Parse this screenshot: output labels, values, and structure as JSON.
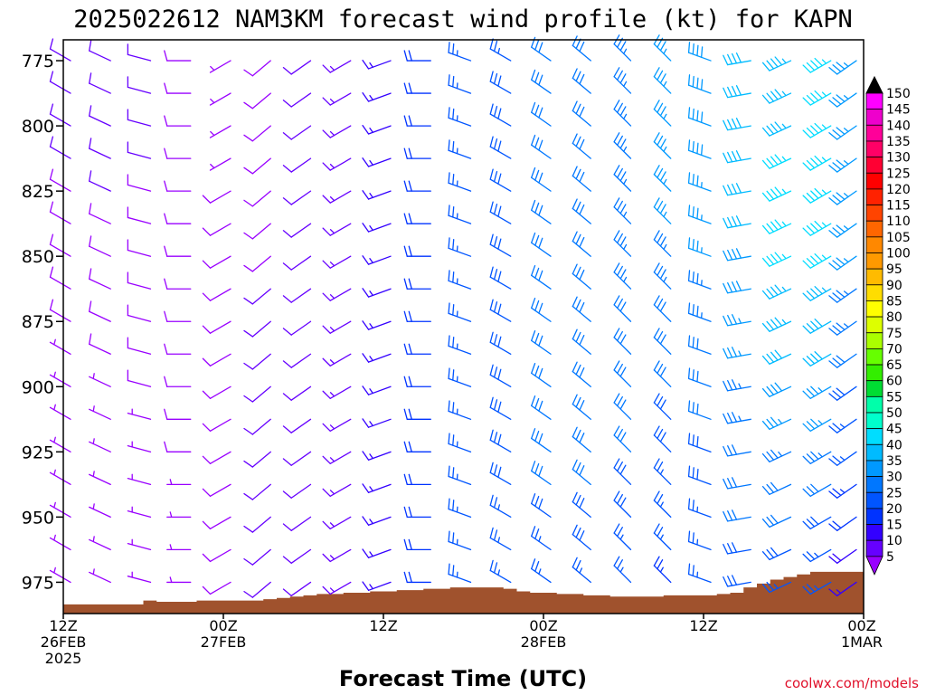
{
  "chart_data": {
    "type": "wind-barb profile",
    "title": "2025022612 NAM3KM forecast wind profile (kt) for KAPN",
    "xlabel": "Forecast Time (UTC)",
    "ylabel": "",
    "credit": "coolwx.com/models",
    "y_axis": {
      "scale": "pressure (hPa), decreasing upward",
      "range": [
        987,
        767
      ],
      "ticks": [
        775,
        800,
        825,
        850,
        875,
        900,
        925,
        950,
        975
      ]
    },
    "x_axis": {
      "range_hours": [
        0,
        60
      ],
      "ticks": [
        {
          "hour": 0,
          "lines": [
            "12Z",
            "26FEB",
            "2025"
          ]
        },
        {
          "hour": 12,
          "lines": [
            "00Z",
            "27FEB"
          ]
        },
        {
          "hour": 24,
          "lines": [
            "12Z"
          ]
        },
        {
          "hour": 36,
          "lines": [
            "00Z",
            "28FEB"
          ]
        },
        {
          "hour": 48,
          "lines": [
            "12Z"
          ]
        },
        {
          "hour": 60,
          "lines": [
            "00Z",
            "1MAR"
          ]
        }
      ]
    },
    "colorbar": {
      "unit": "kt",
      "labels": [
        150,
        145,
        140,
        135,
        130,
        125,
        120,
        115,
        110,
        105,
        100,
        95,
        90,
        85,
        80,
        75,
        70,
        65,
        60,
        55,
        50,
        45,
        40,
        35,
        30,
        25,
        20,
        15,
        10,
        5
      ],
      "colors": [
        "#ff00ff",
        "#ee00cc",
        "#ff0099",
        "#ff0066",
        "#ff0033",
        "#ff0000",
        "#ff2200",
        "#ff4400",
        "#ff6600",
        "#ff8800",
        "#ff9900",
        "#ffbb00",
        "#ffdd00",
        "#ffff00",
        "#ddff00",
        "#aaff00",
        "#66ff00",
        "#33ee00",
        "#00dd33",
        "#00ffaa",
        "#00ffcc",
        "#00ddff",
        "#00bbff",
        "#0099ff",
        "#0077ff",
        "#0055ff",
        "#0033ff",
        "#3300ff",
        "#6600ff",
        "#9900ff"
      ]
    },
    "surface_pressure": {
      "hours": [
        0,
        1,
        2,
        3,
        4,
        5,
        6,
        7,
        8,
        9,
        10,
        11,
        12,
        13,
        14,
        15,
        16,
        17,
        18,
        19,
        20,
        21,
        22,
        23,
        24,
        25,
        26,
        27,
        28,
        29,
        30,
        31,
        32,
        33,
        34,
        35,
        36,
        37,
        38,
        39,
        40,
        41,
        42,
        43,
        44,
        45,
        46,
        47,
        48,
        49,
        50,
        51,
        52,
        53,
        54,
        55,
        56,
        57,
        58,
        59,
        60
      ],
      "pressure": [
        983.5,
        983.5,
        983.5,
        983.5,
        983.5,
        983.5,
        982,
        982.5,
        982.5,
        982.5,
        982,
        982,
        982,
        982,
        982,
        981.5,
        981,
        980.5,
        980,
        979.5,
        979.5,
        979,
        979,
        978.5,
        978.5,
        978,
        978,
        977.5,
        977.5,
        977,
        977,
        977,
        977,
        977.5,
        978.5,
        979,
        979,
        979.5,
        979.5,
        980,
        980,
        980.5,
        980.5,
        980.5,
        980.5,
        980,
        980,
        980,
        980,
        979.5,
        979,
        977,
        975.5,
        974,
        973,
        972,
        971,
        971,
        971,
        971,
        971
      ]
    },
    "levels_hPa": [
      775,
      787.5,
      800,
      812.5,
      825,
      837.5,
      850,
      862.5,
      875,
      887.5,
      900,
      912.5,
      925,
      937.5,
      950,
      962.5,
      975
    ],
    "wind_columns": [
      {
        "hour": 0,
        "dir": 300,
        "speed": [
          12,
          11,
          10,
          10,
          9,
          9,
          8,
          8,
          8,
          7,
          7,
          7,
          6,
          6,
          6,
          6,
          5
        ]
      },
      {
        "hour": 3,
        "dir": 295,
        "speed": [
          12,
          12,
          11,
          10,
          10,
          9,
          9,
          9,
          8,
          8,
          7,
          7,
          7,
          6,
          6,
          6,
          5
        ]
      },
      {
        "hour": 6,
        "dir": 285,
        "speed": [
          11,
          10,
          10,
          10,
          9,
          9,
          9,
          8,
          8,
          8,
          8,
          7,
          7,
          7,
          7,
          6,
          6
        ]
      },
      {
        "hour": 9,
        "dir": 270,
        "speed": [
          8,
          8,
          8,
          8,
          8,
          8,
          8,
          8,
          8,
          8,
          8,
          8,
          8,
          7,
          7,
          7,
          7
        ]
      },
      {
        "hour": 12,
        "dir": 240,
        "speed": [
          6,
          6,
          7,
          7,
          8,
          8,
          8,
          8,
          8,
          8,
          9,
          9,
          9,
          9,
          9,
          9,
          8
        ]
      },
      {
        "hour": 15,
        "dir": 230,
        "speed": [
          8,
          8,
          9,
          9,
          9,
          9,
          9,
          10,
          10,
          10,
          10,
          10,
          10,
          10,
          10,
          10,
          10
        ]
      },
      {
        "hour": 18,
        "dir": 235,
        "speed": [
          10,
          10,
          10,
          10,
          11,
          11,
          11,
          11,
          11,
          11,
          11,
          11,
          11,
          11,
          12,
          12,
          12
        ]
      },
      {
        "hour": 21,
        "dir": 240,
        "speed": [
          14,
          14,
          14,
          14,
          14,
          14,
          13,
          13,
          13,
          13,
          13,
          13,
          13,
          13,
          13,
          13,
          13
        ]
      },
      {
        "hour": 24,
        "dir": 250,
        "speed": [
          16,
          16,
          16,
          16,
          16,
          16,
          16,
          16,
          16,
          16,
          16,
          16,
          16,
          16,
          16,
          16,
          16
        ]
      },
      {
        "hour": 27,
        "dir": 270,
        "speed": [
          20,
          20,
          20,
          20,
          20,
          20,
          20,
          20,
          20,
          20,
          20,
          20,
          20,
          20,
          20,
          20,
          20
        ]
      },
      {
        "hour": 30,
        "dir": 290,
        "speed": [
          25,
          25,
          26,
          26,
          26,
          26,
          26,
          26,
          26,
          26,
          25,
          25,
          25,
          25,
          25,
          25,
          25
        ]
      },
      {
        "hour": 33,
        "dir": 300,
        "speed": [
          27,
          28,
          28,
          28,
          28,
          28,
          28,
          28,
          28,
          28,
          28,
          28,
          28,
          28,
          27,
          26,
          25
        ]
      },
      {
        "hour": 36,
        "dir": 305,
        "speed": [
          30,
          30,
          30,
          30,
          30,
          30,
          30,
          30,
          30,
          30,
          30,
          30,
          30,
          30,
          28,
          27,
          26
        ]
      },
      {
        "hour": 39,
        "dir": 310,
        "speed": [
          32,
          32,
          32,
          32,
          32,
          32,
          32,
          32,
          32,
          32,
          32,
          31,
          30,
          30,
          29,
          28,
          27
        ]
      },
      {
        "hour": 42,
        "dir": 315,
        "speed": [
          33,
          33,
          33,
          33,
          33,
          33,
          33,
          33,
          32,
          32,
          31,
          30,
          30,
          29,
          28,
          27,
          26
        ]
      },
      {
        "hour": 45,
        "dir": 315,
        "speed": [
          35,
          35,
          35,
          35,
          35,
          35,
          34,
          33,
          32,
          31,
          30,
          29,
          28,
          27,
          26,
          25,
          24
        ]
      },
      {
        "hour": 48,
        "dir": 290,
        "speed": [
          38,
          38,
          38,
          38,
          37,
          36,
          35,
          34,
          33,
          32,
          31,
          30,
          29,
          28,
          27,
          26,
          25
        ]
      },
      {
        "hour": 51,
        "dir": 260,
        "speed": [
          42,
          42,
          42,
          42,
          41,
          40,
          39,
          38,
          37,
          35,
          34,
          33,
          32,
          31,
          30,
          29,
          28
        ]
      },
      {
        "hour": 54,
        "dir": 245,
        "speed": [
          44,
          44,
          44,
          45,
          45,
          45,
          45,
          44,
          43,
          40,
          38,
          36,
          34,
          32,
          30,
          28,
          26
        ]
      },
      {
        "hour": 57,
        "dir": 240,
        "speed": [
          45,
          45,
          46,
          46,
          46,
          46,
          45,
          44,
          42,
          40,
          37,
          35,
          33,
          31,
          29,
          27,
          25
        ]
      },
      {
        "hour": 60,
        "dir": 235,
        "speed": [
          35,
          35,
          36,
          36,
          36,
          36,
          35,
          34,
          33,
          31,
          29,
          27,
          25,
          23,
          21,
          19,
          17
        ]
      }
    ]
  }
}
